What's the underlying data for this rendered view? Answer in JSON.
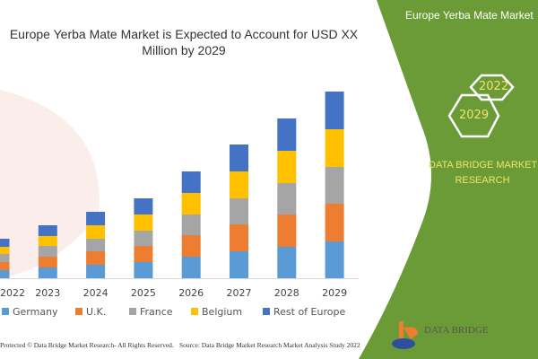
{
  "title": "Europe Yerba Mate Market is Expected to Account for USD XX Million by 2029",
  "title_line1": "Europe Yerba Mate Market is Expected to Account for USD XX",
  "title_line2": "Million by 2029",
  "panel": {
    "title": "Europe Yerba Mate Market",
    "hex_years": [
      "2022",
      "2029"
    ],
    "brand_line1": "DATA BRIDGE MARKET",
    "brand_line2": "RESEARCH",
    "logo_text": "DATA BRIDGE",
    "color": "#6b9b37"
  },
  "footer": {
    "left": "Protected © Data Bridge Market Research- All Rights Reserved.",
    "right": "Source: Data Bridge Market Research Market Analysis Study 2022"
  },
  "chart_data": {
    "type": "bar",
    "stacked": true,
    "title": "Europe Yerba Mate Market is Expected to Account for USD XX Million by 2029",
    "xlabel": "",
    "ylabel": "",
    "categories": [
      "2022",
      "2023",
      "2024",
      "2025",
      "2026",
      "2027",
      "2028",
      "2029"
    ],
    "y_axis_shown": false,
    "grid": false,
    "legend": "bottom",
    "series": [
      {
        "name": "Germany",
        "color": "#5b9bd5",
        "values": [
          9,
          12,
          15,
          18,
          24,
          30,
          35,
          41
        ]
      },
      {
        "name": "U.K.",
        "color": "#ed7d31",
        "values": [
          9,
          12,
          15,
          18,
          24,
          30,
          36,
          42
        ]
      },
      {
        "name": "France",
        "color": "#a5a5a5",
        "values": [
          9,
          12,
          14,
          17,
          23,
          29,
          35,
          41
        ]
      },
      {
        "name": "Belgium",
        "color": "#ffc000",
        "values": [
          8,
          11,
          15,
          18,
          24,
          30,
          36,
          42
        ]
      },
      {
        "name": "Rest of Europe",
        "color": "#4472c4",
        "values": [
          9,
          12,
          15,
          18,
          24,
          30,
          36,
          42
        ]
      }
    ]
  }
}
